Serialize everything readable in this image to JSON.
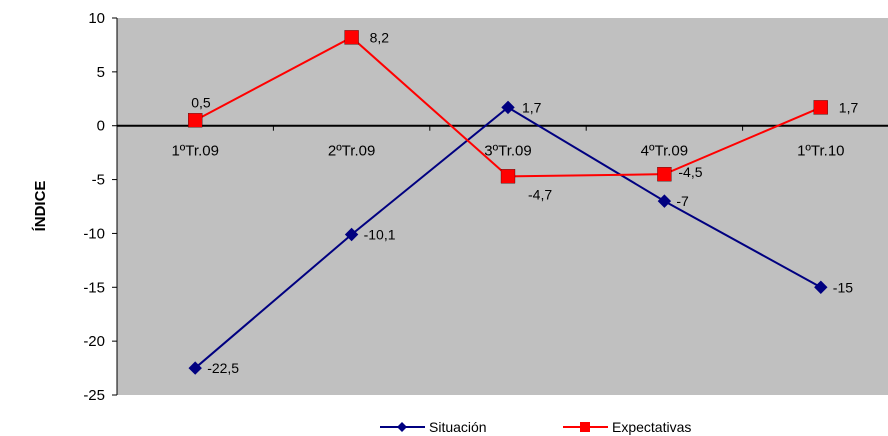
{
  "chart_data": {
    "type": "line",
    "categories": [
      "1ºTr.09",
      "2ºTr.09",
      "3ºTr.09",
      "4ºTr.09",
      "1ºTr.10"
    ],
    "series": [
      {
        "name": "Situación",
        "values": [
          -22.5,
          -10.1,
          1.7,
          -7,
          -15
        ],
        "labels": [
          "-22,5",
          "-10,1",
          "1,7",
          "-7",
          "-15"
        ],
        "color": "#000080",
        "marker": "diamond"
      },
      {
        "name": "Expectativas",
        "values": [
          0.5,
          8.2,
          -4.7,
          -4.5,
          1.7
        ],
        "labels": [
          "0,5",
          "8,2",
          "-4,7",
          "-4,5",
          "1,7"
        ],
        "color": "#ff0000",
        "marker": "square"
      }
    ],
    "title": "",
    "xlabel": "",
    "ylabel": "ÍNDICE",
    "ylim": [
      -25,
      10
    ],
    "yticks": [
      10,
      5,
      0,
      -5,
      -10,
      -15,
      -20,
      -25
    ],
    "grid": false,
    "plot_background": "#c0c0c0",
    "legend_position": "bottom"
  }
}
